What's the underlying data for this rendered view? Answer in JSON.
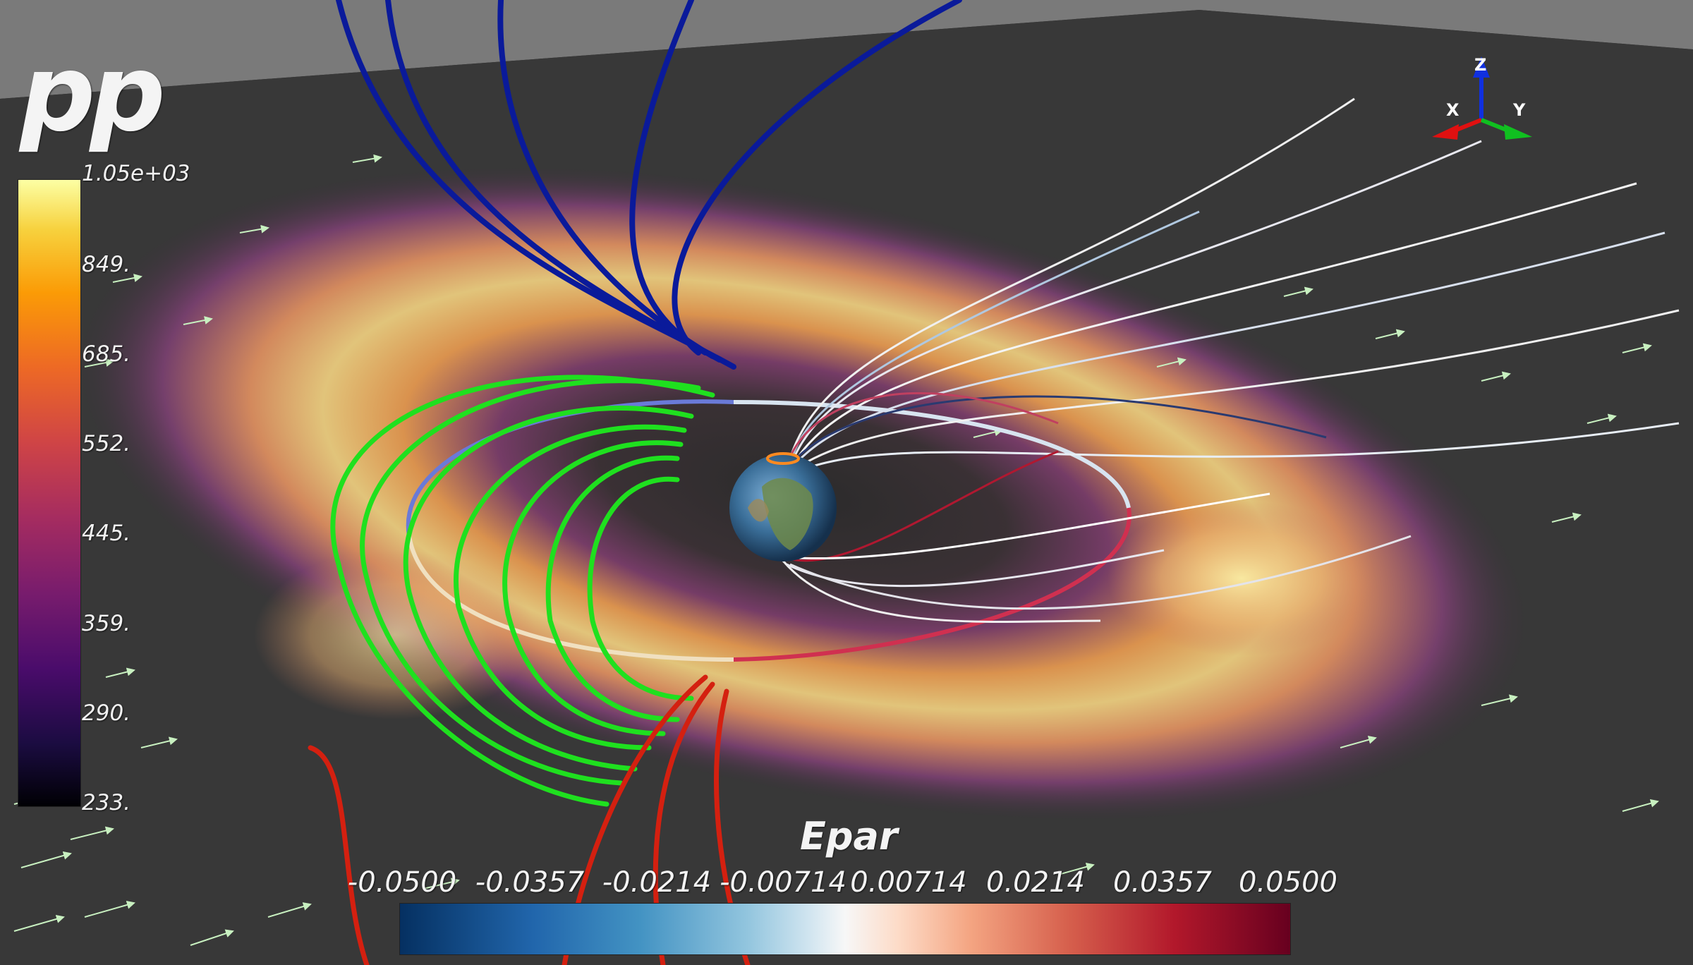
{
  "scalar_bar_pp": {
    "title": "pp",
    "ticks": [
      "1.05e+03",
      "849.",
      "685.",
      "552.",
      "445.",
      "359.",
      "290.",
      "233."
    ],
    "colormap": "inferno"
  },
  "scalar_bar_epar": {
    "title": "Epar",
    "ticks": [
      "-0.0500",
      "-0.0357",
      "-0.0214",
      "-0.00714",
      "0.00714",
      "0.0214",
      "0.0357",
      "0.0500"
    ],
    "colormap": "blue-white-red diverging"
  },
  "orientation_axes": {
    "x_label": "X",
    "y_label": "Y",
    "z_label": "Z",
    "x_color": "#e01010",
    "y_color": "#10c020",
    "z_color": "#1030e0"
  },
  "scene": {
    "background_color": "#2f2f2f",
    "sky_color": "#7a7a7a",
    "green_field_line_color": "#1fe01f",
    "blue_field_line_color": "#0a1a9a",
    "red_field_line_color": "#d42010",
    "vector_arrow_color": "#c8f0c0",
    "globe": "earth-globe-icon"
  }
}
